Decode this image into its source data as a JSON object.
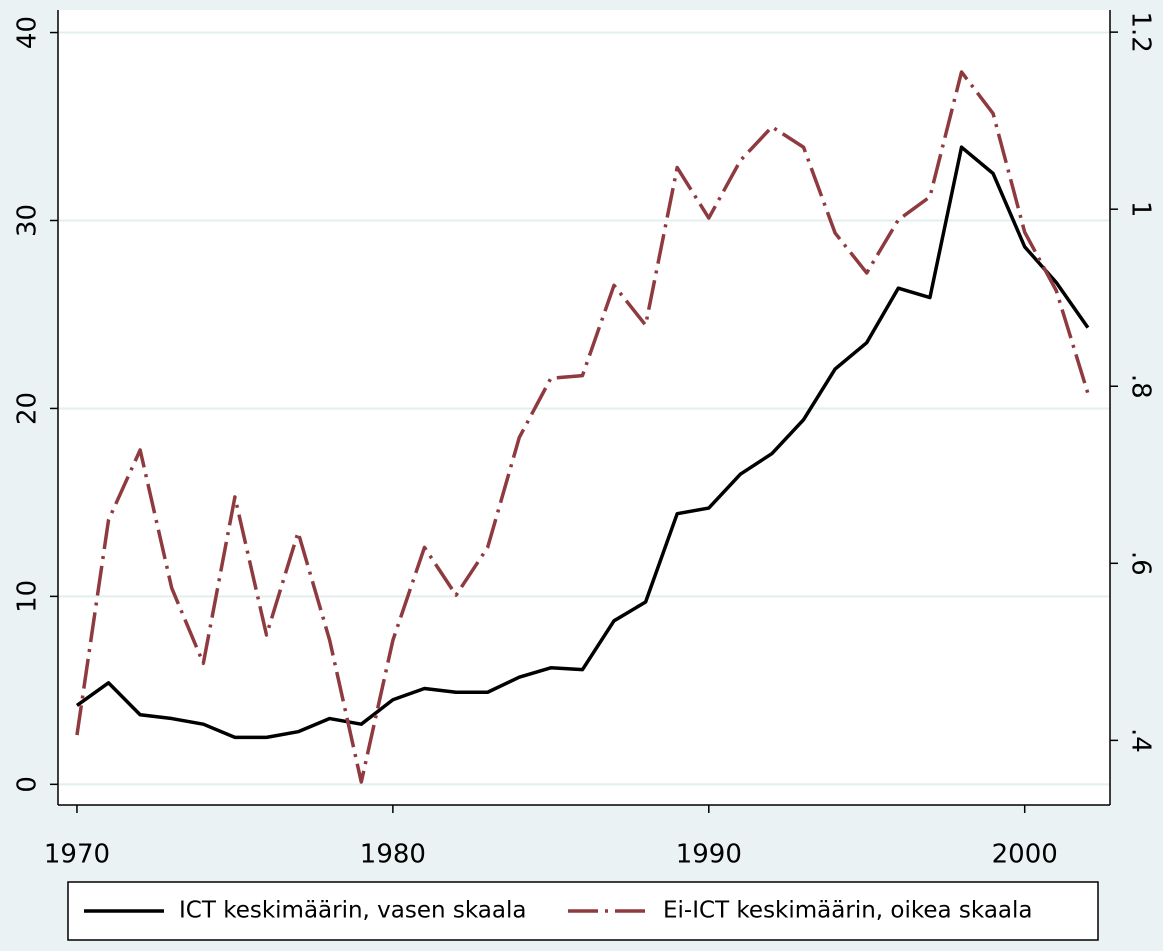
{
  "chart_data": {
    "type": "line",
    "x": [
      1970,
      1971,
      1972,
      1973,
      1974,
      1975,
      1976,
      1977,
      1978,
      1979,
      1980,
      1981,
      1982,
      1983,
      1984,
      1985,
      1986,
      1987,
      1988,
      1989,
      1990,
      1991,
      1992,
      1993,
      1994,
      1995,
      1996,
      1997,
      1998,
      1999,
      2000,
      2001,
      2002
    ],
    "series": [
      {
        "name": "ICT keskimäärin, vasen skaala",
        "color": "#000000",
        "axis": "y",
        "values": [
          4.2,
          5.4,
          3.7,
          3.5,
          3.2,
          2.5,
          2.5,
          2.8,
          3.5,
          3.2,
          4.5,
          5.1,
          4.9,
          4.9,
          5.7,
          6.2,
          6.1,
          8.7,
          9.7,
          14.4,
          14.7,
          16.5,
          17.6,
          19.4,
          22.1,
          23.5,
          26.4,
          25.9,
          33.9,
          32.5,
          28.6,
          26.7,
          24.3
        ]
      },
      {
        "name": "Ei-ICT keskimäärin, oikea skaala",
        "color": "#8e3a3f",
        "axis": "y2",
        "values": [
          0.406,
          0.649,
          0.728,
          0.572,
          0.487,
          0.675,
          0.519,
          0.635,
          0.513,
          0.353,
          0.513,
          0.618,
          0.564,
          0.618,
          0.742,
          0.809,
          0.812,
          0.914,
          0.869,
          1.047,
          0.99,
          1.055,
          1.093,
          1.07,
          0.973,
          0.928,
          0.988,
          1.014,
          1.155,
          1.108,
          0.974,
          0.908,
          0.792
        ]
      }
    ],
    "xlim": [
      1969.4,
      2002.7
    ],
    "xticks": [
      1970,
      1980,
      1990,
      2000
    ],
    "ylim": [
      -1.1,
      41.2
    ],
    "yticks": [
      0,
      10,
      20,
      30,
      40
    ],
    "y2lim": [
      0.327,
      1.225
    ],
    "y2ticks": [
      {
        "value": 0.4,
        "label": ".4"
      },
      {
        "value": 0.6,
        "label": ".6"
      },
      {
        "value": 0.8,
        "label": ".8"
      },
      1,
      1.2
    ],
    "grid": true
  }
}
